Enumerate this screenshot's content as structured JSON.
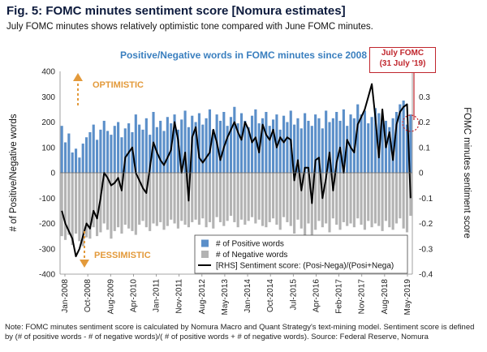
{
  "header": {
    "title": "Fig. 5: FOMC minutes sentiment score [Nomura estimates]",
    "subtitle": "July FOMC minutes shows relatively optimistic tone compared with June FOMC minutes."
  },
  "footnote": "Note: FOMC minutes sentiment score is calculated by Nomura Macro and Quant Strategy's text-mining model. Sentiment score is defined by (# of positive words - # of negative words)/( # of positive words + # of negative words). Source: Federal Reserve, Nomura",
  "chart_data": {
    "type": "bar",
    "title": "Positive/Negative words in FOMC minutes since 2008",
    "ylabel": "# of Positive/Negative words",
    "y2label": "FOMC minutes sentiment score",
    "ylim": [
      -400,
      400
    ],
    "y2lim": [
      -0.4,
      0.4
    ],
    "y_ticks": [
      "400",
      "300",
      "200",
      "100",
      "0",
      "-100",
      "-200",
      "-300",
      "-400"
    ],
    "y2_ticks": [
      "0.3",
      "0.2",
      "0.1",
      "0",
      "-0.1",
      "-0.2",
      "-0.3",
      "-0.4"
    ],
    "x_tick_labels": [
      "Jan-2008",
      "Oct-2008",
      "Aug-2009",
      "Apr-2010",
      "Jan-2011",
      "Nov-2011",
      "Aug-2012",
      "May-2013",
      "Jan-2014",
      "Oct-2014",
      "Jul-2015",
      "Apr-2016",
      "Feb-2017",
      "Nov-2017",
      "Aug-2018",
      "May-2019"
    ],
    "annotations": {
      "optimistic": "OPTIMISTIC",
      "pessimistic": "PESSIMISTIC",
      "callout": [
        "July FOMC",
        "(31 July '19)"
      ]
    },
    "legend_position": "bottom-center",
    "series": [
      {
        "name": "# of Positive words",
        "color": "#5b8fc9",
        "values": [
          185,
          120,
          155,
          80,
          95,
          60,
          115,
          140,
          160,
          190,
          130,
          170,
          205,
          165,
          150,
          185,
          200,
          140,
          175,
          195,
          160,
          230,
          190,
          170,
          215,
          150,
          240,
          180,
          205,
          165,
          220,
          195,
          230,
          170,
          210,
          245,
          180,
          225,
          200,
          235,
          190,
          215,
          250,
          170,
          230,
          205,
          240,
          185,
          220,
          260,
          195,
          235,
          205,
          180,
          225,
          250,
          195,
          215,
          240,
          185,
          210,
          230,
          170,
          225,
          200,
          245,
          190,
          215,
          175,
          235,
          205,
          185,
          230,
          215,
          175,
          245,
          200,
          215,
          240,
          205,
          250,
          185,
          230,
          215,
          270,
          230,
          245,
          195,
          220,
          255,
          235,
          210,
          205,
          180,
          215,
          240,
          270,
          285,
          190,
          230
        ]
      },
      {
        "name": "# of Negative words",
        "color": "#b3b3b3",
        "values": [
          -250,
          -265,
          -245,
          -285,
          -240,
          -270,
          -290,
          -255,
          -260,
          -215,
          -250,
          -235,
          -200,
          -225,
          -260,
          -230,
          -215,
          -240,
          -205,
          -220,
          -230,
          -245,
          -205,
          -190,
          -215,
          -230,
          -200,
          -210,
          -195,
          -225,
          -210,
          -185,
          -200,
          -220,
          -190,
          -205,
          -215,
          -195,
          -185,
          -205,
          -180,
          -215,
          -195,
          -220,
          -175,
          -195,
          -210,
          -190,
          -170,
          -195,
          -215,
          -185,
          -205,
          -190,
          -175,
          -200,
          -185,
          -210,
          -215,
          -195,
          -180,
          -205,
          -225,
          -175,
          -195,
          -210,
          -240,
          -185,
          -220,
          -250,
          -200,
          -245,
          -225,
          -190,
          -215,
          -200,
          -235,
          -180,
          -205,
          -225,
          -195,
          -210,
          -200,
          -215,
          -180,
          -205,
          -225,
          -190,
          -215,
          -200,
          -210,
          -230,
          -190,
          -215,
          -225,
          -200,
          -180,
          -220,
          -235,
          -170
        ]
      },
      {
        "name": "[RHS] Sentiment score: (Posi-Nega)/(Posi+Nega)",
        "color": "#000000",
        "x_range": [
          0,
          99
        ],
        "values": [
          -0.15,
          -0.2,
          -0.23,
          -0.26,
          -0.33,
          -0.3,
          -0.25,
          -0.2,
          -0.22,
          -0.15,
          -0.18,
          -0.1,
          0.0,
          -0.02,
          -0.05,
          -0.04,
          -0.02,
          -0.07,
          0.06,
          0.08,
          0.1,
          0.0,
          -0.03,
          -0.06,
          -0.08,
          0.02,
          0.12,
          0.08,
          0.05,
          0.03,
          0.06,
          0.09,
          0.2,
          0.13,
          0.0,
          0.08,
          -0.11,
          0.14,
          0.18,
          0.06,
          0.04,
          0.06,
          0.08,
          0.17,
          0.12,
          0.05,
          0.1,
          0.14,
          0.17,
          0.2,
          0.16,
          0.13,
          0.2,
          0.17,
          0.12,
          0.14,
          0.08,
          0.19,
          0.15,
          0.13,
          0.17,
          0.1,
          0.14,
          0.12,
          0.14,
          0.13,
          -0.03,
          0.05,
          -0.07,
          0.02,
          0.02,
          -0.12,
          0.05,
          0.06,
          -0.1,
          -0.02,
          0.08,
          -0.07,
          0.04,
          0.1,
          0.0,
          0.13,
          0.1,
          0.08,
          0.19,
          0.22,
          0.25,
          0.3,
          0.35,
          0.22,
          0.06,
          0.25,
          0.1,
          0.16,
          0.05,
          0.19,
          0.24,
          0.26,
          0.27,
          -0.1
        ]
      }
    ]
  }
}
